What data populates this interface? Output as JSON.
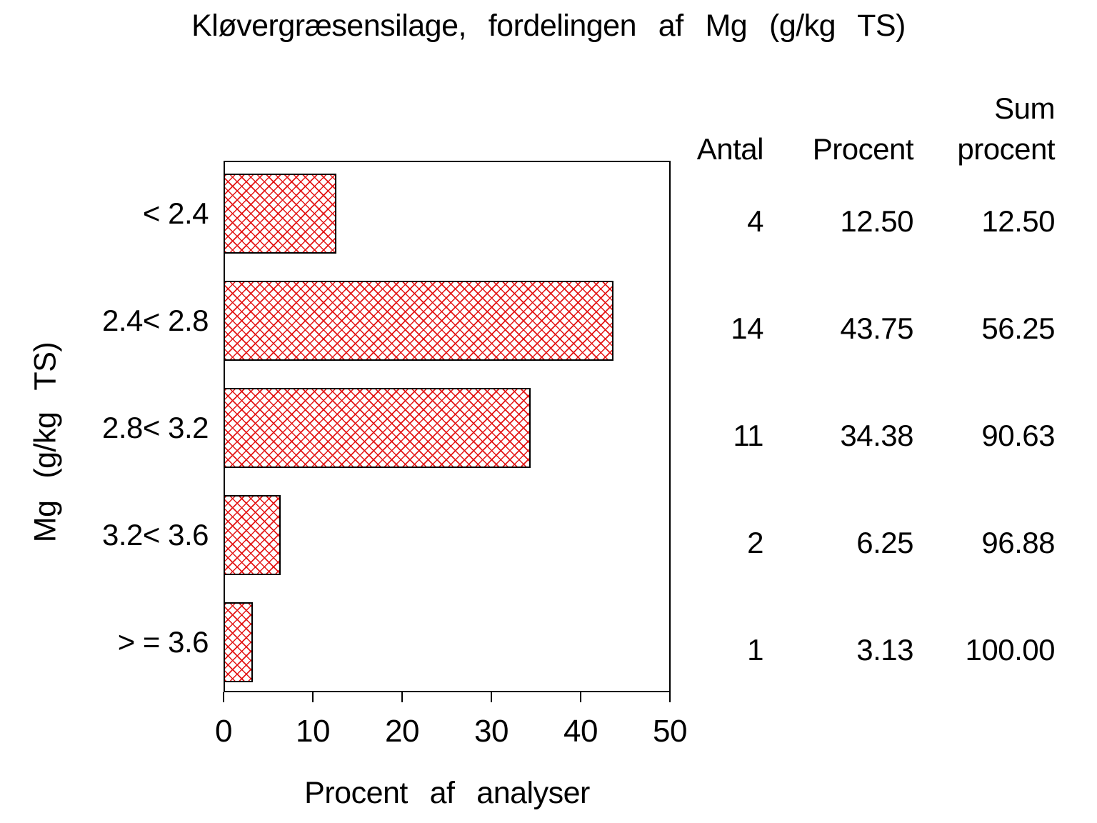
{
  "title": "Kløvergræsensilage, fordelingen af Mg (g/kg TS)",
  "axes": {
    "x_label": "Procent af analyser",
    "y_label": "Mg (g/kg TS)"
  },
  "table": {
    "header_antal": "Antal",
    "header_procent": "Procent",
    "header_sum_line1": "Sum",
    "header_sum_line2": "procent"
  },
  "chart_data": {
    "type": "bar",
    "orientation": "horizontal",
    "title": "Kløvergræsensilage, fordelingen af Mg (g/kg TS)",
    "xlabel": "Procent af analyser",
    "ylabel": "Mg (g/kg TS)",
    "xlim": [
      0,
      50
    ],
    "x_ticks": [
      0,
      10,
      20,
      30,
      40,
      50
    ],
    "grid": false,
    "categories": [
      "< 2.4",
      "2.4< 2.8",
      "2.8< 3.2",
      "3.2< 3.6",
      "> = 3.6"
    ],
    "values": [
      12.5,
      43.75,
      34.38,
      6.25,
      3.13
    ],
    "bar_fill_pattern": "red-crosshatch",
    "bar_pattern_color": "#e31616",
    "bar_border_color": "#000000",
    "table_columns": [
      "Antal",
      "Procent",
      "Sum procent"
    ],
    "rows": [
      {
        "category": "< 2.4",
        "antal": "4",
        "procent": "12.50",
        "sum_procent": "12.50"
      },
      {
        "category": "2.4< 2.8",
        "antal": "14",
        "procent": "43.75",
        "sum_procent": "56.25"
      },
      {
        "category": "2.8< 3.2",
        "antal": "11",
        "procent": "34.38",
        "sum_procent": "90.63"
      },
      {
        "category": "3.2< 3.6",
        "antal": "2",
        "procent": "6.25",
        "sum_procent": "96.88"
      },
      {
        "category": "> = 3.6",
        "antal": "1",
        "procent": "3.13",
        "sum_procent": "100.00"
      }
    ]
  }
}
